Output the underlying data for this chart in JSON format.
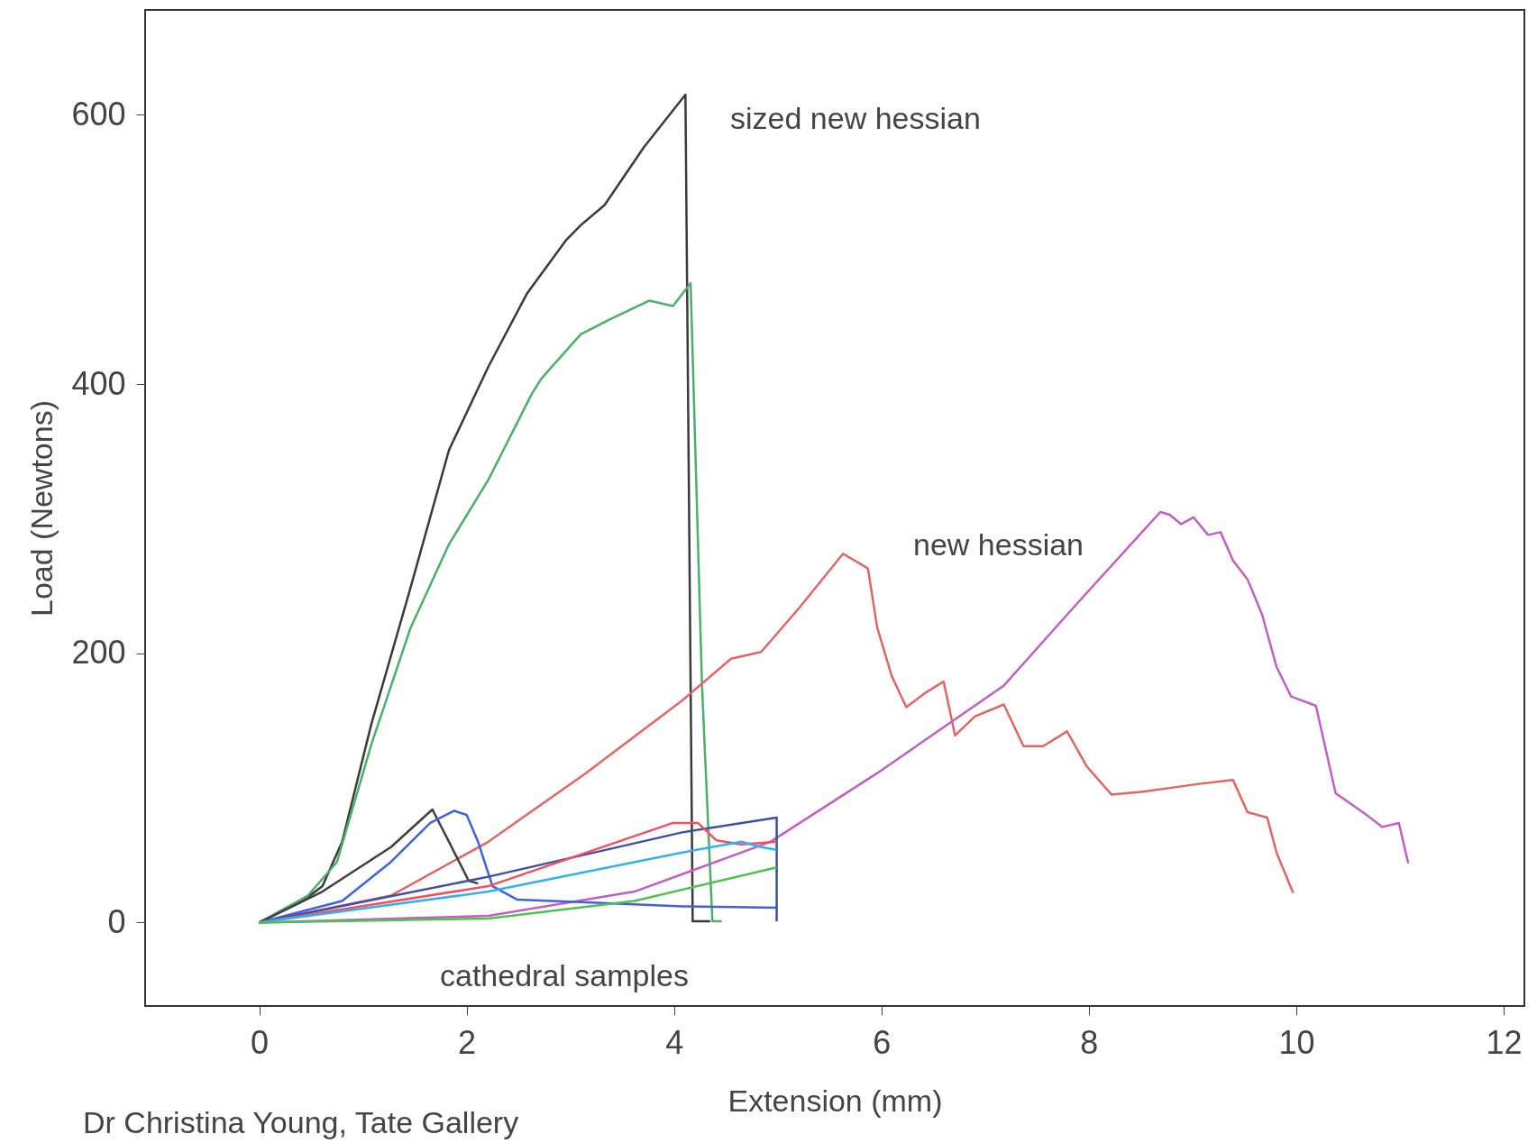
{
  "chart_data": {
    "type": "line",
    "xlabel": "Extension (mm)",
    "ylabel": "Load (Newtons)",
    "xlim": [
      -1.1,
      12.2
    ],
    "xticks": [
      0,
      2,
      4,
      6,
      8,
      10,
      12
    ],
    "ylim": [
      -62,
      678
    ],
    "yticks": [
      0,
      200,
      400,
      600
    ],
    "grid": false,
    "marker": "none",
    "line_style": "solid",
    "series": [
      {
        "color": "#3a3a3a",
        "x": [
          0,
          0.42,
          0.61,
          0.8,
          1.08,
          1.46,
          1.83,
          2.21,
          2.58,
          2.96,
          3.1,
          3.33,
          3.71,
          4.11,
          4.18,
          4.35
        ],
        "values": [
          0,
          16,
          27,
          60,
          147,
          249,
          351,
          413,
          467,
          507,
          518,
          533,
          576,
          615,
          1,
          1
        ]
      },
      {
        "color": "#4caf6a",
        "x": [
          0,
          0.47,
          0.75,
          1.08,
          1.46,
          1.83,
          2.21,
          2.63,
          2.72,
          3.1,
          3.38,
          3.76,
          3.99,
          4.16,
          4.27,
          4.37,
          4.46
        ],
        "values": [
          0,
          20,
          45,
          132,
          219,
          281,
          329,
          393,
          404,
          437,
          448,
          462,
          458,
          475,
          176,
          1,
          1
        ]
      },
      {
        "color": "#e06666",
        "x": [
          0,
          1.27,
          2.21,
          3.15,
          4.08,
          4.55,
          4.84,
          5.21,
          5.63,
          5.87,
          5.96,
          6.1,
          6.24,
          6.43,
          6.6,
          6.71,
          6.9,
          7.18,
          7.37,
          7.56,
          7.79,
          7.98,
          8.22,
          8.5,
          9.06,
          9.39,
          9.53,
          9.72,
          9.81,
          9.97
        ],
        "values": [
          0,
          20,
          60,
          111,
          165,
          196,
          201,
          234,
          274,
          263,
          219,
          183,
          160,
          171,
          179,
          139,
          153,
          162,
          131,
          131,
          142,
          116,
          95,
          97,
          103,
          106,
          82,
          78,
          52,
          22
        ]
      },
      {
        "color": "#c060c0",
        "x": [
          0,
          2.21,
          3.62,
          4.93,
          5.96,
          7.18,
          7.84,
          8.69,
          8.78,
          8.89,
          9.01,
          9.15,
          9.27,
          9.39,
          9.53,
          9.67,
          9.81,
          9.95,
          10.19,
          10.38,
          10.66,
          10.83,
          10.99,
          11.08
        ],
        "values": [
          0,
          5,
          23,
          60,
          111,
          176,
          233,
          305,
          303,
          296,
          301,
          288,
          290,
          269,
          255,
          229,
          190,
          168,
          161,
          96,
          81,
          71,
          74,
          44
        ]
      },
      {
        "color": "#404040",
        "x": [
          0,
          0.61,
          1.27,
          1.67,
          1.83,
          2.02,
          2.11
        ],
        "values": [
          0,
          23,
          56,
          84,
          60,
          31,
          29
        ]
      },
      {
        "color": "#4060e0",
        "x": [
          0,
          0.8,
          1.27,
          1.65,
          1.88,
          2,
          2.11,
          2.25,
          2.49,
          3.15,
          4.08,
          4.99
        ],
        "values": [
          0,
          16,
          45,
          74,
          83,
          80,
          60,
          27,
          17,
          15,
          12,
          11
        ]
      },
      {
        "color": "#4050a0",
        "x": [
          0,
          2.21,
          4.08,
          4.99,
          4.99
        ],
        "values": [
          0,
          34,
          67,
          78,
          1
        ]
      },
      {
        "color": "#f05060",
        "x": [
          0,
          2.21,
          3.99,
          4.23,
          4.41,
          4.65,
          4.99
        ],
        "values": [
          0,
          27,
          74,
          74,
          61,
          58,
          60
        ]
      },
      {
        "color": "#30b0f0",
        "x": [
          0,
          2.21,
          4.08,
          4.65,
          4.84,
          4.99
        ],
        "values": [
          0,
          23,
          52,
          60,
          56,
          54
        ]
      },
      {
        "color": "#50c050",
        "x": [
          0,
          2.21,
          3.62,
          4.99
        ],
        "values": [
          0,
          3,
          16,
          41
        ]
      }
    ],
    "annotations": [
      "sized new hessian",
      "new hessian",
      "cathedral samples",
      "Dr Christina Young, Tate Gallery"
    ]
  }
}
